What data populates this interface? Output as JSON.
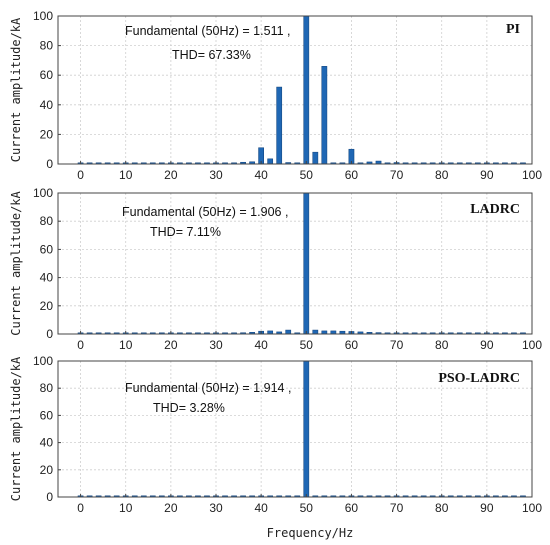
{
  "chart_data": [
    {
      "type": "bar",
      "tag": "PI",
      "annotation_line1": "Fundamental (50Hz) = 1.511 ,",
      "annotation_line2": "THD= 67.33%",
      "ylabel": "Current amplitude/kA",
      "xlabel": "",
      "xlim": [
        -5,
        100
      ],
      "ylim": [
        0,
        100
      ],
      "xticks": [
        0,
        10,
        20,
        30,
        40,
        50,
        60,
        70,
        80,
        90,
        100
      ],
      "yticks": [
        0,
        20,
        40,
        60,
        80,
        100
      ],
      "grid": true,
      "x": [
        0,
        2,
        4,
        6,
        8,
        10,
        12,
        14,
        16,
        18,
        20,
        22,
        24,
        26,
        28,
        30,
        32,
        34,
        36,
        38,
        40,
        42,
        44,
        46,
        48,
        50,
        52,
        54,
        56,
        58,
        60,
        62,
        64,
        66,
        68,
        70,
        72,
        74,
        76,
        78,
        80,
        82,
        84,
        86,
        88,
        90,
        92,
        94,
        96,
        98
      ],
      "values": [
        0.3,
        0.3,
        0.3,
        0.3,
        0.3,
        0.3,
        0.3,
        0.3,
        0.3,
        0.3,
        0.3,
        0.3,
        0.3,
        0.3,
        0.3,
        0.3,
        0.4,
        0.6,
        1.2,
        1.5,
        11,
        3.5,
        52,
        1,
        0.5,
        100,
        8,
        66,
        0.5,
        0.5,
        10,
        0.8,
        1.4,
        2,
        0.6,
        1,
        0.5,
        0.4,
        0.3,
        0.3,
        0.3,
        0.3,
        0.3,
        0.3,
        0.3,
        0.3,
        0.3,
        0.3,
        0.3,
        0.3
      ]
    },
    {
      "type": "bar",
      "tag": "LADRC",
      "annotation_line1": "Fundamental (50Hz) = 1.906 ,",
      "annotation_line2": "THD= 7.11%",
      "ylabel": "Current amplitude/kA",
      "xlabel": "",
      "xlim": [
        -5,
        100
      ],
      "ylim": [
        0,
        100
      ],
      "xticks": [
        0,
        10,
        20,
        30,
        40,
        50,
        60,
        70,
        80,
        90,
        100
      ],
      "yticks": [
        0,
        20,
        40,
        60,
        80,
        100
      ],
      "grid": true,
      "x": [
        0,
        2,
        4,
        6,
        8,
        10,
        12,
        14,
        16,
        18,
        20,
        22,
        24,
        26,
        28,
        30,
        32,
        34,
        36,
        38,
        40,
        42,
        44,
        46,
        48,
        50,
        52,
        54,
        56,
        58,
        60,
        62,
        64,
        66,
        68,
        70,
        72,
        74,
        76,
        78,
        80,
        82,
        84,
        86,
        88,
        90,
        92,
        94,
        96,
        98
      ],
      "values": [
        0.3,
        0.3,
        0.3,
        0.3,
        0.3,
        0.3,
        0.3,
        0.3,
        0.3,
        0.3,
        0.3,
        0.3,
        0.3,
        0.3,
        0.3,
        0.3,
        0.4,
        0.6,
        0.9,
        1.2,
        2,
        2.2,
        1.5,
        2.8,
        0.5,
        100,
        2.8,
        2.2,
        2.2,
        2,
        1.8,
        1.5,
        1.2,
        1,
        0.8,
        0.7,
        0.6,
        0.5,
        0.4,
        0.4,
        0.3,
        0.3,
        0.3,
        0.3,
        0.3,
        0.3,
        0.3,
        0.3,
        0.3,
        0.3
      ]
    },
    {
      "type": "bar",
      "tag": "PSO-LADRC",
      "annotation_line1": "Fundamental (50Hz) = 1.914 ,",
      "annotation_line2": "THD= 3.28%",
      "ylabel": "Current amplitude/kA",
      "xlabel": "Frequency/Hz",
      "xlim": [
        -5,
        100
      ],
      "ylim": [
        0,
        100
      ],
      "xticks": [
        0,
        10,
        20,
        30,
        40,
        50,
        60,
        70,
        80,
        90,
        100
      ],
      "yticks": [
        0,
        20,
        40,
        60,
        80,
        100
      ],
      "grid": true,
      "x": [
        0,
        2,
        4,
        6,
        8,
        10,
        12,
        14,
        16,
        18,
        20,
        22,
        24,
        26,
        28,
        30,
        32,
        34,
        36,
        38,
        40,
        42,
        44,
        46,
        48,
        50,
        52,
        54,
        56,
        58,
        60,
        62,
        64,
        66,
        68,
        70,
        72,
        74,
        76,
        78,
        80,
        82,
        84,
        86,
        88,
        90,
        92,
        94,
        96,
        98
      ],
      "values": [
        0.3,
        0.3,
        0.3,
        0.3,
        0.3,
        0.3,
        0.3,
        0.3,
        0.3,
        0.3,
        0.3,
        0.3,
        0.3,
        0.3,
        0.3,
        0.3,
        0.3,
        0.4,
        0.5,
        0.6,
        0.8,
        0.7,
        0.6,
        0.6,
        0.5,
        100,
        0.6,
        0.6,
        0.6,
        0.5,
        0.5,
        0.5,
        0.4,
        0.4,
        0.4,
        0.4,
        0.3,
        0.3,
        0.3,
        0.3,
        0.3,
        0.3,
        0.3,
        0.3,
        0.3,
        0.3,
        0.3,
        0.3,
        0.3,
        0.3
      ]
    }
  ],
  "colors": {
    "bar_fill": "#1f67b4",
    "bar_stroke": "#0d3f78",
    "grid": "#cfcfcf",
    "axis": "#444444"
  }
}
